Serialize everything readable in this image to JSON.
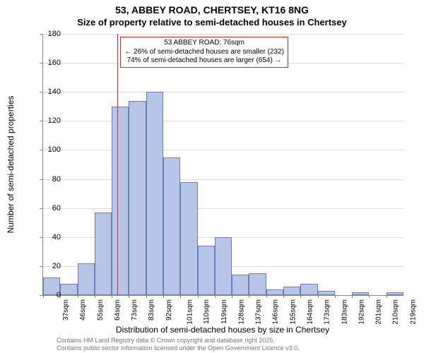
{
  "title_line1": "53, ABBEY ROAD, CHERTSEY, KT16 8NG",
  "title_line2": "Size of property relative to semi-detached houses in Chertsey",
  "y_axis_label": "Number of semi-detached properties",
  "x_axis_label": "Distribution of semi-detached houses by size in Chertsey",
  "footer_line1": "Contains HM Land Registry data © Crown copyright and database right 2025.",
  "footer_line2": "Contains public sector information licensed under the Open Government Licence v3.0.",
  "annotation": {
    "line1": "53 ABBEY ROAD: 76sqm",
    "line2": "← 26% of semi-detached houses are smaller (232)",
    "line3": "74% of semi-detached houses are larger (654) →"
  },
  "chart": {
    "type": "histogram",
    "ylim": [
      0,
      180
    ],
    "ytick_step": 20,
    "y_ticks": [
      0,
      20,
      40,
      60,
      80,
      100,
      120,
      140,
      160,
      180
    ],
    "background_color": "#ffffff",
    "grid_color": "#dcdcdc",
    "bar_fill": "#b7c5e8",
    "bar_stroke": "#6a7fb3",
    "marker_color": "#d22",
    "marker_value": 76,
    "x_start": 37,
    "x_step": 9,
    "categories": [
      "37sqm",
      "46sqm",
      "55sqm",
      "64sqm",
      "73sqm",
      "83sqm",
      "92sqm",
      "101sqm",
      "110sqm",
      "119sqm",
      "128sqm",
      "137sqm",
      "146sqm",
      "155sqm",
      "164sqm",
      "173sqm",
      "183sqm",
      "192sqm",
      "201sqm",
      "210sqm",
      "219sqm"
    ],
    "values": [
      12,
      8,
      22,
      57,
      130,
      134,
      140,
      95,
      78,
      34,
      40,
      14,
      15,
      4,
      6,
      8,
      3,
      0,
      2,
      0,
      2
    ],
    "title_fontsize": 14,
    "subtitle_fontsize": 13,
    "axis_label_fontsize": 12,
    "tick_fontsize": 11
  }
}
